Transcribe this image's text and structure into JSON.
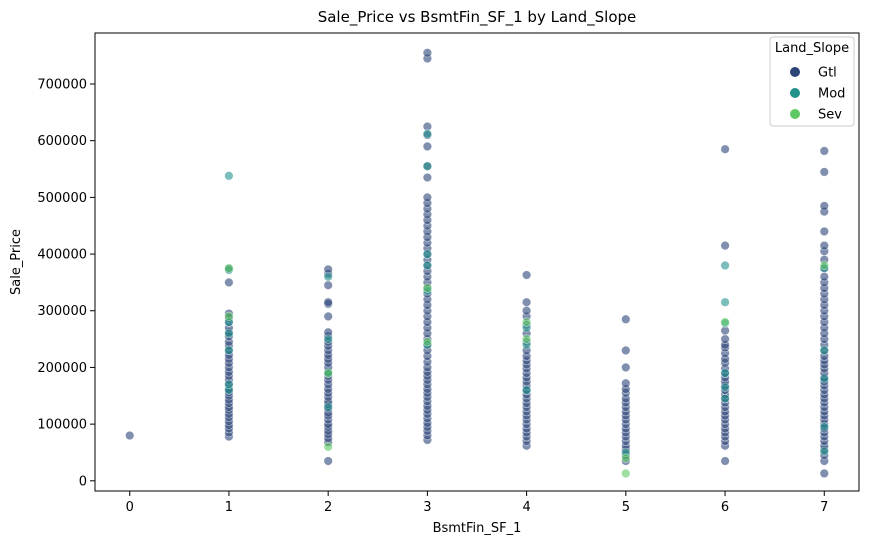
{
  "chart_data": {
    "type": "scatter",
    "title": "Sale_Price vs BsmtFin_SF_1 by Land_Slope",
    "xlabel": "BsmtFin_SF_1",
    "ylabel": "Sale_Price",
    "xlim": [
      -0.35,
      7.35
    ],
    "ylim": [
      -18000,
      790000
    ],
    "x_ticks": [
      0,
      1,
      2,
      3,
      4,
      5,
      6,
      7
    ],
    "y_ticks": [
      0,
      100000,
      200000,
      300000,
      400000,
      500000,
      600000,
      700000
    ],
    "grid": false,
    "legend": {
      "title": "Land_Slope",
      "placement": "top-right"
    },
    "series": [
      {
        "name": "Gtl",
        "color": "#2c4478",
        "points": [
          [
            0,
            80000
          ],
          [
            1,
            78000
          ],
          [
            1,
            85000
          ],
          [
            1,
            92000
          ],
          [
            1,
            98000
          ],
          [
            1,
            105000
          ],
          [
            1,
            112000
          ],
          [
            1,
            118000
          ],
          [
            1,
            125000
          ],
          [
            1,
            130000
          ],
          [
            1,
            137000
          ],
          [
            1,
            143000
          ],
          [
            1,
            150000
          ],
          [
            1,
            156000
          ],
          [
            1,
            162000
          ],
          [
            1,
            170000
          ],
          [
            1,
            178000
          ],
          [
            1,
            185000
          ],
          [
            1,
            192000
          ],
          [
            1,
            200000
          ],
          [
            1,
            208000
          ],
          [
            1,
            215000
          ],
          [
            1,
            222000
          ],
          [
            1,
            230000
          ],
          [
            1,
            238000
          ],
          [
            1,
            245000
          ],
          [
            1,
            255000
          ],
          [
            1,
            262000
          ],
          [
            1,
            270000
          ],
          [
            1,
            280000
          ],
          [
            1,
            287000
          ],
          [
            1,
            295000
          ],
          [
            1,
            350000
          ],
          [
            1,
            374000
          ],
          [
            2,
            35000
          ],
          [
            2,
            68000
          ],
          [
            2,
            75000
          ],
          [
            2,
            82000
          ],
          [
            2,
            88000
          ],
          [
            2,
            95000
          ],
          [
            2,
            100000
          ],
          [
            2,
            108000
          ],
          [
            2,
            115000
          ],
          [
            2,
            120000
          ],
          [
            2,
            127000
          ],
          [
            2,
            135000
          ],
          [
            2,
            140000
          ],
          [
            2,
            148000
          ],
          [
            2,
            155000
          ],
          [
            2,
            162000
          ],
          [
            2,
            170000
          ],
          [
            2,
            178000
          ],
          [
            2,
            185000
          ],
          [
            2,
            192000
          ],
          [
            2,
            200000
          ],
          [
            2,
            208000
          ],
          [
            2,
            215000
          ],
          [
            2,
            222000
          ],
          [
            2,
            230000
          ],
          [
            2,
            238000
          ],
          [
            2,
            245000
          ],
          [
            2,
            255000
          ],
          [
            2,
            262000
          ],
          [
            2,
            290000
          ],
          [
            2,
            312000
          ],
          [
            2,
            315000
          ],
          [
            2,
            345000
          ],
          [
            2,
            365000
          ],
          [
            2,
            373000
          ],
          [
            3,
            72000
          ],
          [
            3,
            80000
          ],
          [
            3,
            88000
          ],
          [
            3,
            95000
          ],
          [
            3,
            102000
          ],
          [
            3,
            110000
          ],
          [
            3,
            118000
          ],
          [
            3,
            125000
          ],
          [
            3,
            132000
          ],
          [
            3,
            140000
          ],
          [
            3,
            148000
          ],
          [
            3,
            155000
          ],
          [
            3,
            162000
          ],
          [
            3,
            170000
          ],
          [
            3,
            178000
          ],
          [
            3,
            185000
          ],
          [
            3,
            192000
          ],
          [
            3,
            200000
          ],
          [
            3,
            210000
          ],
          [
            3,
            220000
          ],
          [
            3,
            230000
          ],
          [
            3,
            240000
          ],
          [
            3,
            250000
          ],
          [
            3,
            260000
          ],
          [
            3,
            270000
          ],
          [
            3,
            280000
          ],
          [
            3,
            290000
          ],
          [
            3,
            300000
          ],
          [
            3,
            310000
          ],
          [
            3,
            320000
          ],
          [
            3,
            330000
          ],
          [
            3,
            340000
          ],
          [
            3,
            350000
          ],
          [
            3,
            360000
          ],
          [
            3,
            370000
          ],
          [
            3,
            380000
          ],
          [
            3,
            390000
          ],
          [
            3,
            400000
          ],
          [
            3,
            410000
          ],
          [
            3,
            420000
          ],
          [
            3,
            430000
          ],
          [
            3,
            440000
          ],
          [
            3,
            450000
          ],
          [
            3,
            460000
          ],
          [
            3,
            470000
          ],
          [
            3,
            480000
          ],
          [
            3,
            490000
          ],
          [
            3,
            500000
          ],
          [
            3,
            535000
          ],
          [
            3,
            555000
          ],
          [
            3,
            590000
          ],
          [
            3,
            610000
          ],
          [
            3,
            625000
          ],
          [
            3,
            745000
          ],
          [
            3,
            755000
          ],
          [
            4,
            62000
          ],
          [
            4,
            70000
          ],
          [
            4,
            78000
          ],
          [
            4,
            85000
          ],
          [
            4,
            92000
          ],
          [
            4,
            100000
          ],
          [
            4,
            108000
          ],
          [
            4,
            115000
          ],
          [
            4,
            122000
          ],
          [
            4,
            130000
          ],
          [
            4,
            137000
          ],
          [
            4,
            145000
          ],
          [
            4,
            152000
          ],
          [
            4,
            160000
          ],
          [
            4,
            168000
          ],
          [
            4,
            175000
          ],
          [
            4,
            182000
          ],
          [
            4,
            190000
          ],
          [
            4,
            198000
          ],
          [
            4,
            205000
          ],
          [
            4,
            212000
          ],
          [
            4,
            220000
          ],
          [
            4,
            230000
          ],
          [
            4,
            245000
          ],
          [
            4,
            260000
          ],
          [
            4,
            275000
          ],
          [
            4,
            290000
          ],
          [
            4,
            300000
          ],
          [
            4,
            315000
          ],
          [
            4,
            363000
          ],
          [
            5,
            35000
          ],
          [
            5,
            45000
          ],
          [
            5,
            55000
          ],
          [
            5,
            62000
          ],
          [
            5,
            70000
          ],
          [
            5,
            78000
          ],
          [
            5,
            85000
          ],
          [
            5,
            92000
          ],
          [
            5,
            100000
          ],
          [
            5,
            108000
          ],
          [
            5,
            115000
          ],
          [
            5,
            122000
          ],
          [
            5,
            130000
          ],
          [
            5,
            138000
          ],
          [
            5,
            145000
          ],
          [
            5,
            155000
          ],
          [
            5,
            162000
          ],
          [
            5,
            172000
          ],
          [
            5,
            200000
          ],
          [
            5,
            230000
          ],
          [
            5,
            285000
          ],
          [
            6,
            35000
          ],
          [
            6,
            62000
          ],
          [
            6,
            70000
          ],
          [
            6,
            78000
          ],
          [
            6,
            85000
          ],
          [
            6,
            92000
          ],
          [
            6,
            100000
          ],
          [
            6,
            108000
          ],
          [
            6,
            115000
          ],
          [
            6,
            122000
          ],
          [
            6,
            130000
          ],
          [
            6,
            138000
          ],
          [
            6,
            145000
          ],
          [
            6,
            152000
          ],
          [
            6,
            160000
          ],
          [
            6,
            168000
          ],
          [
            6,
            175000
          ],
          [
            6,
            182000
          ],
          [
            6,
            190000
          ],
          [
            6,
            198000
          ],
          [
            6,
            208000
          ],
          [
            6,
            215000
          ],
          [
            6,
            225000
          ],
          [
            6,
            235000
          ],
          [
            6,
            240000
          ],
          [
            6,
            250000
          ],
          [
            6,
            265000
          ],
          [
            6,
            415000
          ],
          [
            6,
            585000
          ],
          [
            7,
            13000
          ],
          [
            7,
            35000
          ],
          [
            7,
            45000
          ],
          [
            7,
            55000
          ],
          [
            7,
            62000
          ],
          [
            7,
            70000
          ],
          [
            7,
            78000
          ],
          [
            7,
            85000
          ],
          [
            7,
            92000
          ],
          [
            7,
            100000
          ],
          [
            7,
            108000
          ],
          [
            7,
            115000
          ],
          [
            7,
            122000
          ],
          [
            7,
            130000
          ],
          [
            7,
            138000
          ],
          [
            7,
            145000
          ],
          [
            7,
            152000
          ],
          [
            7,
            160000
          ],
          [
            7,
            168000
          ],
          [
            7,
            175000
          ],
          [
            7,
            182000
          ],
          [
            7,
            190000
          ],
          [
            7,
            198000
          ],
          [
            7,
            205000
          ],
          [
            7,
            212000
          ],
          [
            7,
            220000
          ],
          [
            7,
            230000
          ],
          [
            7,
            240000
          ],
          [
            7,
            250000
          ],
          [
            7,
            260000
          ],
          [
            7,
            270000
          ],
          [
            7,
            280000
          ],
          [
            7,
            290000
          ],
          [
            7,
            300000
          ],
          [
            7,
            310000
          ],
          [
            7,
            320000
          ],
          [
            7,
            330000
          ],
          [
            7,
            340000
          ],
          [
            7,
            350000
          ],
          [
            7,
            360000
          ],
          [
            7,
            375000
          ],
          [
            7,
            390000
          ],
          [
            7,
            405000
          ],
          [
            7,
            415000
          ],
          [
            7,
            440000
          ],
          [
            7,
            475000
          ],
          [
            7,
            485000
          ],
          [
            7,
            545000
          ],
          [
            7,
            582000
          ]
        ]
      },
      {
        "name": "Mod",
        "color": "#21918c",
        "points": [
          [
            1,
            160000
          ],
          [
            1,
            170000
          ],
          [
            1,
            230000
          ],
          [
            1,
            260000
          ],
          [
            1,
            280000
          ],
          [
            1,
            372000
          ],
          [
            1,
            538000
          ],
          [
            2,
            130000
          ],
          [
            2,
            190000
          ],
          [
            2,
            250000
          ],
          [
            2,
            360000
          ],
          [
            3,
            240000
          ],
          [
            3,
            335000
          ],
          [
            3,
            380000
          ],
          [
            3,
            400000
          ],
          [
            3,
            555000
          ],
          [
            3,
            612000
          ],
          [
            4,
            160000
          ],
          [
            4,
            240000
          ],
          [
            4,
            270000
          ],
          [
            5,
            50000
          ],
          [
            6,
            145000
          ],
          [
            6,
            165000
          ],
          [
            6,
            190000
          ],
          [
            6,
            278000
          ],
          [
            6,
            315000
          ],
          [
            6,
            380000
          ],
          [
            7,
            52000
          ],
          [
            7,
            95000
          ],
          [
            7,
            180000
          ],
          [
            7,
            230000
          ],
          [
            7,
            375000
          ]
        ]
      },
      {
        "name": "Sev",
        "color": "#5ec962",
        "points": [
          [
            1,
            290000
          ],
          [
            1,
            375000
          ],
          [
            2,
            60000
          ],
          [
            2,
            190000
          ],
          [
            3,
            245000
          ],
          [
            3,
            340000
          ],
          [
            4,
            250000
          ],
          [
            4,
            280000
          ],
          [
            5,
            13000
          ],
          [
            5,
            40000
          ],
          [
            6,
            280000
          ],
          [
            7,
            380000
          ]
        ]
      }
    ]
  }
}
